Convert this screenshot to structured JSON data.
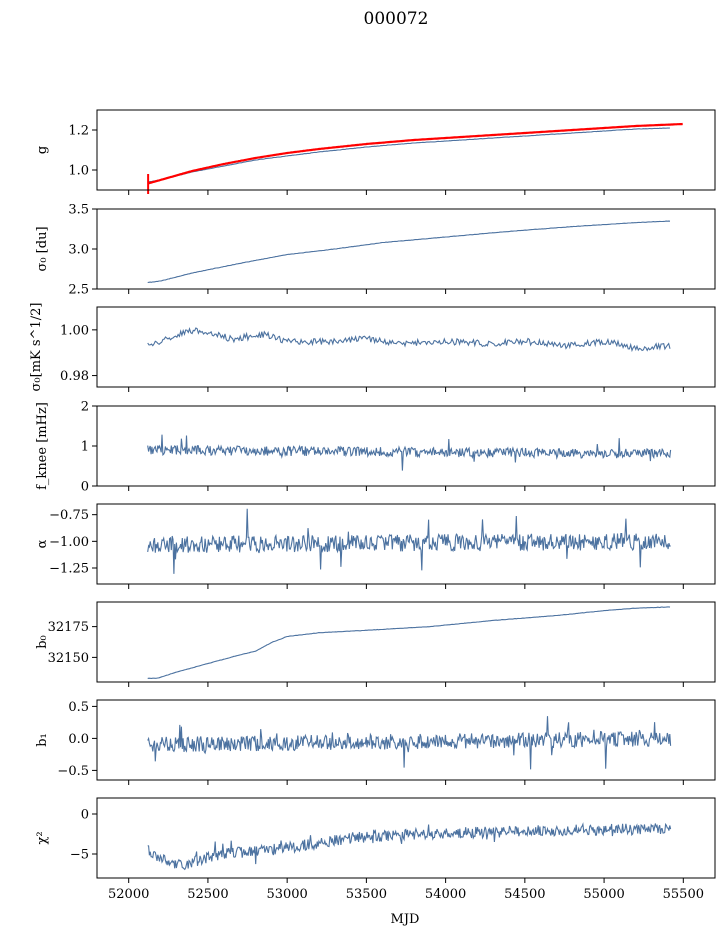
{
  "title": "000072",
  "xlabel": "MJD",
  "colors": {
    "series": "#4c72a0",
    "fit": "#ff0000",
    "frame": "#000000"
  },
  "chart_data": [
    {
      "type": "line",
      "ylabel": "g",
      "ylim": [
        0.9,
        1.3
      ],
      "yticks": [
        "1.0",
        "1.2"
      ],
      "xlim": [
        51800,
        55700
      ],
      "x_range": [
        52120,
        55420
      ],
      "series": [
        {
          "kind": "curve",
          "x": [
            52120,
            52200,
            52400,
            52600,
            52800,
            53000,
            53200,
            53500,
            53800,
            54100,
            54400,
            54700,
            55000,
            55200,
            55420
          ],
          "values": [
            0.94,
            0.95,
            0.99,
            1.02,
            1.05,
            1.07,
            1.09,
            1.115,
            1.135,
            1.15,
            1.165,
            1.18,
            1.195,
            1.205,
            1.21
          ]
        },
        {
          "kind": "fit",
          "x": [
            52110,
            52200,
            52400,
            52600,
            52800,
            53000,
            53200,
            53500,
            53800,
            54100,
            54400,
            54700,
            55000,
            55200,
            55500
          ],
          "values": [
            0.93,
            0.95,
            0.995,
            1.03,
            1.06,
            1.085,
            1.105,
            1.13,
            1.15,
            1.165,
            1.18,
            1.195,
            1.21,
            1.22,
            1.23
          ]
        }
      ]
    },
    {
      "type": "line",
      "ylabel": "σ₀ [du]",
      "ylim": [
        2.5,
        3.5
      ],
      "yticks": [
        "2.5",
        "3.0",
        "3.5"
      ],
      "xlim": [
        51800,
        55700
      ],
      "x_range": [
        52120,
        55420
      ],
      "series": [
        {
          "kind": "curve",
          "x": [
            52120,
            52200,
            52400,
            52700,
            53000,
            53300,
            53600,
            54000,
            54400,
            54800,
            55200,
            55420
          ],
          "values": [
            2.58,
            2.6,
            2.7,
            2.82,
            2.93,
            3.0,
            3.08,
            3.15,
            3.22,
            3.28,
            3.33,
            3.35
          ]
        }
      ]
    },
    {
      "type": "line",
      "ylabel": "σ₀[mK s^1/2]",
      "ylim": [
        0.975,
        1.01
      ],
      "yticks": [
        "0.98",
        "1.00"
      ],
      "xlim": [
        51800,
        55700
      ],
      "x_range": [
        52120,
        55420
      ],
      "series": [
        {
          "kind": "curve",
          "x": [
            52120,
            52300,
            52450,
            52650,
            52850,
            53000,
            53250,
            53500,
            53750,
            54000,
            54250,
            54500,
            54750,
            55000,
            55200,
            55420
          ],
          "values": [
            0.993,
            0.998,
            1.0,
            0.996,
            0.998,
            0.995,
            0.995,
            0.996,
            0.994,
            0.995,
            0.994,
            0.995,
            0.993,
            0.995,
            0.992,
            0.993
          ]
        }
      ]
    },
    {
      "type": "line",
      "ylabel": "f_knee [mHz]",
      "ylim": [
        0,
        2
      ],
      "yticks": [
        "0",
        "1",
        "2"
      ],
      "xlim": [
        51800,
        55700
      ],
      "x_range": [
        52120,
        55420
      ],
      "series": [
        {
          "kind": "noise",
          "mean": [
            0.9,
            0.8
          ],
          "amplitude": 0.12,
          "spike": 0.45
        }
      ]
    },
    {
      "type": "line",
      "ylabel": "α",
      "ylim": [
        -1.4,
        -0.65
      ],
      "yticks": [
        "−1.25",
        "−1.00",
        "−0.75"
      ],
      "xlim": [
        51800,
        55700
      ],
      "x_range": [
        52120,
        55420
      ],
      "series": [
        {
          "kind": "noise",
          "mean": [
            -1.03,
            -1.0
          ],
          "amplitude": 0.08,
          "spike": 0.3
        }
      ]
    },
    {
      "type": "line",
      "ylabel": "b₀",
      "ylim": [
        32130,
        32195
      ],
      "yticks": [
        "32150",
        "32175"
      ],
      "xlim": [
        51800,
        55700
      ],
      "x_range": [
        52120,
        55420
      ],
      "series": [
        {
          "kind": "curve",
          "x": [
            52120,
            52180,
            52300,
            52500,
            52700,
            52800,
            52900,
            53000,
            53200,
            53500,
            53900,
            54300,
            54700,
            55000,
            55200,
            55420
          ],
          "values": [
            32133,
            32133,
            32138,
            32145,
            32152,
            32155,
            32162,
            32167,
            32170,
            32172,
            32175,
            32180,
            32184,
            32188,
            32190,
            32191
          ]
        }
      ]
    },
    {
      "type": "line",
      "ylabel": "b₁",
      "ylim": [
        -0.65,
        0.6
      ],
      "yticks": [
        "−0.5",
        "0.0",
        "0.5"
      ],
      "xlim": [
        51800,
        55700
      ],
      "x_range": [
        52120,
        55420
      ],
      "series": [
        {
          "kind": "noise",
          "mean": [
            -0.1,
            0.0
          ],
          "amplitude": 0.12,
          "spike": 0.4
        }
      ]
    },
    {
      "type": "line",
      "ylabel": "χ²",
      "ylim": [
        -8,
        2
      ],
      "yticks": [
        "−5",
        "0"
      ],
      "xlim": [
        51800,
        55700
      ],
      "xticks": [
        "52000",
        "52500",
        "53000",
        "53500",
        "54000",
        "54500",
        "55000",
        "55500"
      ],
      "x_range": [
        52120,
        55420
      ],
      "series": [
        {
          "kind": "trendnoise",
          "x": [
            52120,
            52300,
            52600,
            53000,
            53400,
            53800,
            54200,
            54800,
            55420
          ],
          "values": [
            -4.5,
            -6.5,
            -5.0,
            -4.2,
            -3.0,
            -2.5,
            -2.3,
            -2.0,
            -1.8
          ],
          "amplitude": 0.7
        }
      ]
    }
  ]
}
